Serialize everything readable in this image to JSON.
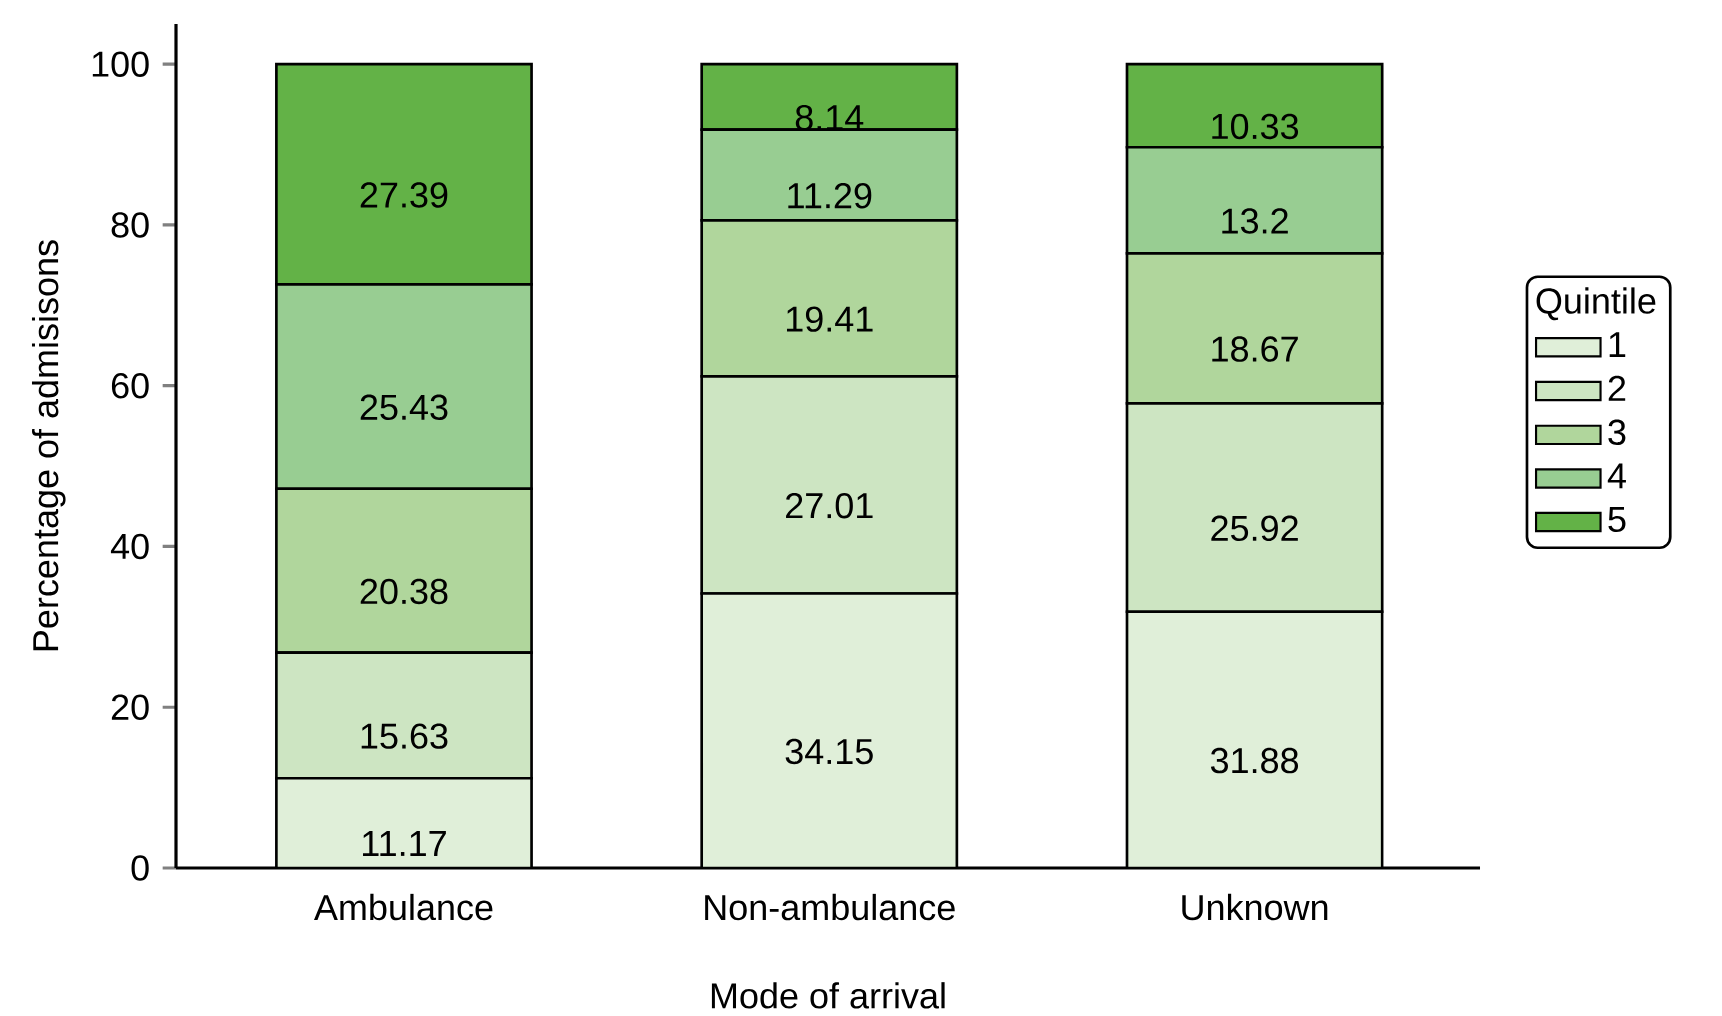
{
  "chart_data": {
    "type": "bar",
    "stacked": true,
    "xlabel": "Mode of arrival",
    "ylabel": "Percentage of admisisons",
    "legend_title": "Quintile",
    "categories": [
      "Ambulance",
      "Non-ambulance",
      "Unknown"
    ],
    "series": [
      {
        "name": "1",
        "color": "#e0efd9",
        "values": [
          11.17,
          34.15,
          31.88
        ]
      },
      {
        "name": "2",
        "color": "#cde5c2",
        "values": [
          15.63,
          27.01,
          25.92
        ]
      },
      {
        "name": "3",
        "color": "#b0d69c",
        "values": [
          20.38,
          19.41,
          18.67
        ]
      },
      {
        "name": "4",
        "color": "#98cd92",
        "values": [
          25.43,
          11.29,
          13.2
        ]
      },
      {
        "name": "5",
        "color": "#63b247",
        "values": [
          27.39,
          8.14,
          10.33
        ]
      }
    ],
    "ylim": [
      0,
      105
    ],
    "yticks": [
      0,
      20,
      40,
      60,
      80,
      100
    ],
    "data_labels": true,
    "legend": "right",
    "grid": false
  }
}
